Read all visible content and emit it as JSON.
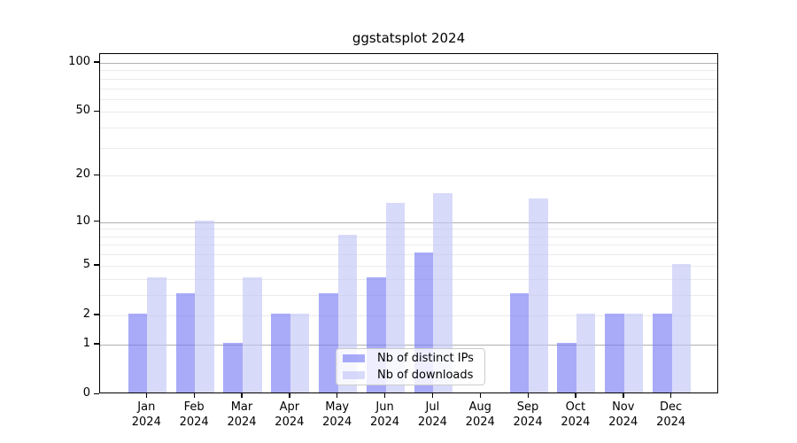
{
  "chart_data": {
    "type": "bar",
    "title": "ggstatsplot 2024",
    "categories": [
      "Jan",
      "Feb",
      "Mar",
      "Apr",
      "May",
      "Jun",
      "Jul",
      "Aug",
      "Sep",
      "Oct",
      "Nov",
      "Dec"
    ],
    "year_label": "2024",
    "series": [
      {
        "name": "Nb of distinct IPs",
        "color": "#777af4",
        "values": [
          2,
          3,
          1,
          2,
          3,
          4,
          6,
          0,
          3,
          1,
          2,
          2
        ]
      },
      {
        "name": "Nb of downloads",
        "color": "#c1c4f7",
        "values": [
          4,
          10,
          4,
          2,
          8,
          13,
          15,
          0,
          14,
          2,
          2,
          5
        ]
      }
    ],
    "yscale": "log1p",
    "ylim": [
      0,
      100
    ],
    "y_ticks": [
      0,
      1,
      2,
      5,
      10,
      20,
      50,
      100
    ],
    "grid_major": [
      1,
      10,
      100
    ],
    "grid_minor": [
      2,
      3,
      4,
      5,
      6,
      7,
      8,
      9,
      20,
      30,
      40,
      50,
      60,
      70,
      80,
      90
    ],
    "grid": "on",
    "legend_position": "inside-bottom-center",
    "colors": {
      "bar_alpha": 0.63,
      "grid_major": "#b0b0b0",
      "grid_minor": "#ebebeb",
      "axis": "#000000",
      "background": "#ffffff"
    }
  }
}
